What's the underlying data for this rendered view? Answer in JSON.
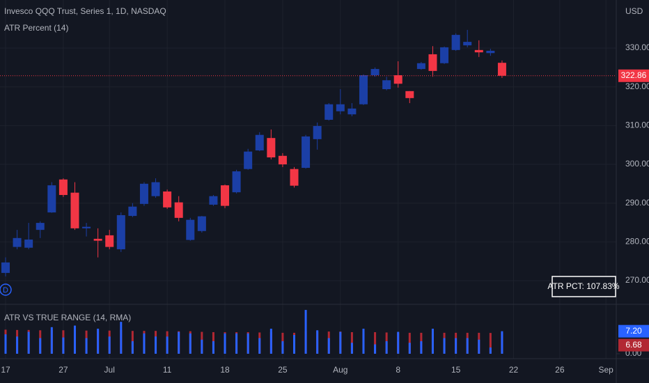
{
  "chart_data": [
    {
      "type": "candlestick",
      "title": "Invesco QQQ Trust, Series 1, 1D, NASDAQ",
      "subtitle": "ATR Percent (14)",
      "currency": "USD",
      "marker": "D",
      "annotation": "ATR PCT: 107.83%",
      "up_color": "#1b3fa6",
      "down_color": "#f23645",
      "categories": [
        "17",
        null,
        null,
        null,
        null,
        "27",
        null,
        null,
        null,
        "Jul",
        null,
        null,
        null,
        null,
        "11",
        null,
        null,
        null,
        null,
        "18",
        null,
        null,
        null,
        null,
        "25",
        null,
        null,
        null,
        null,
        "Aug",
        null,
        null,
        null,
        null,
        "8",
        null,
        null,
        null,
        null,
        "15",
        null,
        null,
        null,
        null,
        "22",
        null,
        null,
        null,
        "26",
        null,
        null,
        null,
        "Sep"
      ],
      "open": [
        272.0,
        278.7,
        278.5,
        283.1,
        287.6,
        296.1,
        292.7,
        283.5,
        280.8,
        281.7,
        278.1,
        286.7,
        289.8,
        291.8,
        293.0,
        290.2,
        280.5,
        282.8,
        289.6,
        294.6,
        292.8,
        298.8,
        303.6,
        306.8,
        302.2,
        298.8,
        299.1,
        306.5,
        311.5,
        313.7,
        312.9,
        315.5,
        323.0,
        319.4,
        323.0,
        318.9,
        324.6,
        328.4,
        326.1,
        329.5,
        330.7,
        329.5,
        328.7,
        326.2,
        null,
        null,
        null,
        null,
        null,
        null,
        null,
        null,
        null
      ],
      "high": [
        276.0,
        283.1,
        284.9,
        285.3,
        295.4,
        296.4,
        295.4,
        284.9,
        283.5,
        283.1,
        287.6,
        290.0,
        295.4,
        296.4,
        293.5,
        291.8,
        286.2,
        286.7,
        292.1,
        294.8,
        298.6,
        304.0,
        308.3,
        309.0,
        302.9,
        299.3,
        307.6,
        310.8,
        315.8,
        319.4,
        315.8,
        323.2,
        325.0,
        322.6,
        326.6,
        318.9,
        326.4,
        330.5,
        330.4,
        333.8,
        334.7,
        332.0,
        329.8,
        326.8,
        null,
        null,
        null,
        null,
        null,
        null,
        null,
        null,
        null
      ],
      "low": [
        271.1,
        278.1,
        278.1,
        281.0,
        287.5,
        291.6,
        283.1,
        281.4,
        276.0,
        278.1,
        277.4,
        286.4,
        289.3,
        291.4,
        288.5,
        285.3,
        280.3,
        282.4,
        289.3,
        288.7,
        292.5,
        298.6,
        303.4,
        301.3,
        299.3,
        294.0,
        298.9,
        303.8,
        311.3,
        312.9,
        312.4,
        315.3,
        322.6,
        319.1,
        319.8,
        315.8,
        324.4,
        322.6,
        325.9,
        329.3,
        330.2,
        327.7,
        328.0,
        322.3,
        null,
        null,
        null,
        null,
        null,
        null,
        null,
        null,
        null
      ],
      "close": [
        274.7,
        281.0,
        280.6,
        284.9,
        294.6,
        292.1,
        283.5,
        283.9,
        280.3,
        278.7,
        286.9,
        289.1,
        295.0,
        295.4,
        288.9,
        286.2,
        285.7,
        286.6,
        291.8,
        289.3,
        298.2,
        303.3,
        307.6,
        301.8,
        300.0,
        294.5,
        307.2,
        309.9,
        315.5,
        315.5,
        314.4,
        323.0,
        324.6,
        321.7,
        320.8,
        317.1,
        326.1,
        324.1,
        330.2,
        333.4,
        331.6,
        328.9,
        329.3,
        322.86,
        null,
        null,
        null,
        null,
        null,
        null,
        null,
        null,
        null
      ],
      "last_price": {
        "value": 322.86,
        "label": "322.86"
      },
      "ylim": [
        263.9,
        342.4
      ],
      "yticks": [
        {
          "value": 270,
          "label": "270.00"
        },
        {
          "value": 280,
          "label": "280.00"
        },
        {
          "value": 290,
          "label": "290.00"
        },
        {
          "value": 300,
          "label": "300.00"
        },
        {
          "value": 310,
          "label": "310.00"
        },
        {
          "value": 320,
          "label": "320.00"
        },
        {
          "value": 330,
          "label": "330.00"
        }
      ],
      "grid": true
    },
    {
      "type": "bar",
      "title": "ATR VS TRUE RANGE (14, RMA)",
      "series": [
        {
          "color": "#b22833",
          "values": [
            7.7,
            7.6,
            7.6,
            7.5,
            7.6,
            7.5,
            7.6,
            7.4,
            7.5,
            7.4,
            7.6,
            7.3,
            7.3,
            7.3,
            7.2,
            7.2,
            7.2,
            7.0,
            6.9,
            6.9,
            6.9,
            6.9,
            6.8,
            6.9,
            6.7,
            6.7,
            7.2,
            7.2,
            7.1,
            7.1,
            6.9,
            7.0,
            6.9,
            6.8,
            6.8,
            6.7,
            6.7,
            6.8,
            6.7,
            6.7,
            6.7,
            6.7,
            6.65,
            6.68,
            null,
            null,
            null,
            null,
            null,
            null,
            null,
            null,
            null
          ]
        },
        {
          "color": "#2962ff",
          "values": [
            6.2,
            5.5,
            7.0,
            5.0,
            8.5,
            5.2,
            9.0,
            5.0,
            8.0,
            5.5,
            10.2,
            4.0,
            6.5,
            5.5,
            5.5,
            7.0,
            6.5,
            4.5,
            4.0,
            6.5,
            6.5,
            6.5,
            5.0,
            8.0,
            4.0,
            6.0,
            14.0,
            7.5,
            5.0,
            7.0,
            3.5,
            8.0,
            3.0,
            4.0,
            7.0,
            3.5,
            4.0,
            8.0,
            5.0,
            5.0,
            5.0,
            4.5,
            2.0,
            7.2,
            null,
            null,
            null,
            null,
            null,
            null,
            null,
            null,
            null
          ]
        }
      ],
      "last_labels": [
        {
          "value": 7.2,
          "label": "7.20",
          "color": "#2962ff"
        },
        {
          "value": 6.68,
          "label": "6.68",
          "color": "#b22833"
        }
      ],
      "ylim": [
        0,
        15.8
      ],
      "yticks": [
        {
          "value": 0,
          "label": "0.00"
        }
      ]
    }
  ]
}
